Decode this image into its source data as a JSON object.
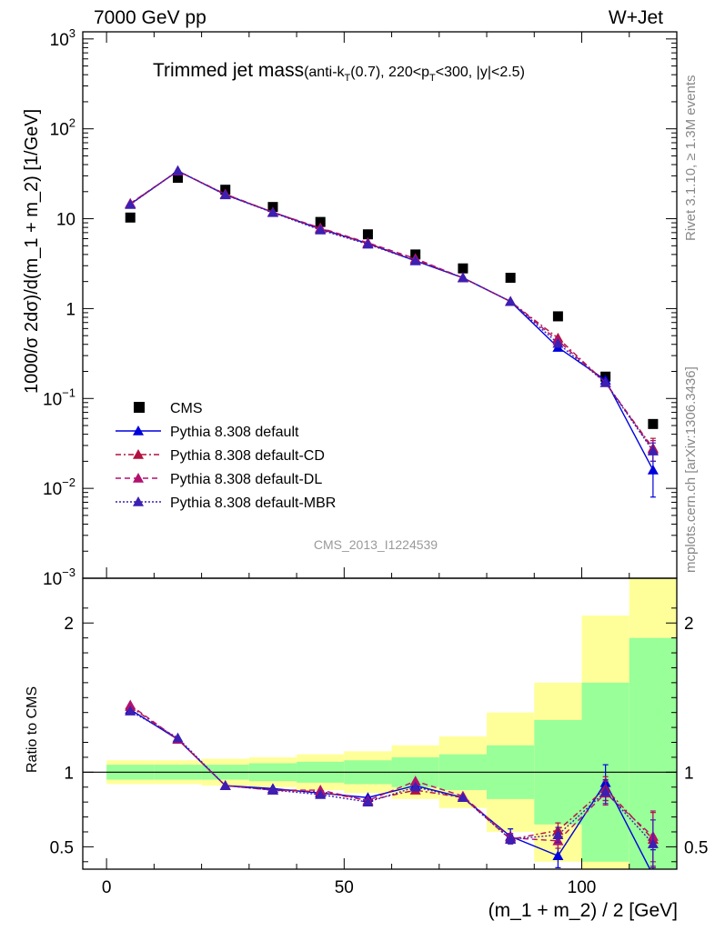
{
  "header": {
    "left": "7000 GeV pp",
    "right": "W+Jet"
  },
  "plot_title": {
    "main": "Trimmed jet mass",
    "sub_prefix": "(anti-k",
    "sub_sub1": "T",
    "sub_mid": "(0.7), 220<p",
    "sub_sub2": "T",
    "sub_suffix": "<300, |y|<2.5)"
  },
  "side_labels": {
    "rivet": "Rivet 3.1.10, ≥ 1.3M events",
    "mcplots": "mcplots.cern.ch [arXiv:1306.3436]"
  },
  "watermark": "CMS_2013_I1224539",
  "colors": {
    "cms": "#000000",
    "default": "#0000dd",
    "cd": "#b2113f",
    "dl": "#b2116e",
    "mbr": "#3c1fb3",
    "band_inner": "#99ff99",
    "band_outer": "#ffff99"
  },
  "chart_data": [
    {
      "type": "scatter",
      "panel": "main",
      "ylabel": "1000/σ 2dσ)/d(m_1 + m_2) [1/GeV]",
      "yscale": "log",
      "ylim": [
        0.001,
        1200
      ],
      "xlim": [
        -5,
        120
      ],
      "yticks": [
        {
          "base": "10",
          "exp": "3"
        },
        {
          "base": "10",
          "exp": "2"
        },
        {
          "base": "10",
          "exp": ""
        },
        {
          "base": "1",
          "exp": ""
        },
        {
          "base": "10",
          "exp": "−1"
        },
        {
          "base": "10",
          "exp": "−2"
        },
        {
          "base": "10",
          "exp": "−3"
        }
      ],
      "x": [
        5,
        15,
        25,
        35,
        45,
        55,
        65,
        75,
        85,
        95,
        105,
        115
      ],
      "legend_position": "bottom-left",
      "series": [
        {
          "name": "CMS",
          "style": "square",
          "values": [
            10.3,
            28.5,
            21.0,
            13.5,
            9.2,
            6.7,
            4.0,
            2.8,
            2.2,
            0.82,
            0.175,
            0.052
          ]
        },
        {
          "name": "Pythia 8.308 default",
          "style": "solid",
          "values": [
            14.5,
            34.0,
            18.5,
            11.8,
            7.7,
            5.3,
            3.4,
            2.2,
            1.2,
            0.37,
            0.16,
            0.016
          ],
          "err_low": [
            0,
            0,
            0,
            0,
            0,
            0,
            0,
            0,
            0,
            0,
            0,
            0.008
          ],
          "err_high": [
            0,
            0,
            0,
            0,
            0,
            0,
            0,
            0,
            0,
            0,
            0,
            0.009
          ]
        },
        {
          "name": "Pythia 8.308 default-CD",
          "style": "dashdot",
          "values": [
            14.7,
            34.0,
            18.8,
            11.8,
            7.8,
            5.3,
            3.5,
            2.2,
            1.2,
            0.47,
            0.15,
            0.028
          ],
          "err_low": [
            0,
            0,
            0,
            0,
            0,
            0,
            0,
            0,
            0,
            0,
            0,
            0.008
          ],
          "err_high": [
            0,
            0,
            0,
            0,
            0,
            0,
            0,
            0,
            0,
            0,
            0,
            0.008
          ]
        },
        {
          "name": "Pythia 8.308 default-DL",
          "style": "dashed",
          "values": [
            14.8,
            33.8,
            18.7,
            11.8,
            7.9,
            5.4,
            3.6,
            2.2,
            1.2,
            0.44,
            0.15,
            0.027
          ],
          "err_low": [
            0,
            0,
            0,
            0,
            0,
            0,
            0,
            0,
            0,
            0,
            0,
            0.007
          ],
          "err_high": [
            0,
            0,
            0,
            0,
            0,
            0,
            0,
            0,
            0,
            0,
            0,
            0.007
          ]
        },
        {
          "name": "Pythia 8.308 default-MBR",
          "style": "dotted",
          "values": [
            14.4,
            34.2,
            18.4,
            11.7,
            7.5,
            5.2,
            3.4,
            2.2,
            1.2,
            0.41,
            0.15,
            0.026
          ],
          "err_low": [
            0,
            0,
            0,
            0,
            0,
            0,
            0,
            0,
            0,
            0,
            0,
            0.006
          ],
          "err_high": [
            0,
            0,
            0,
            0,
            0,
            0,
            0,
            0,
            0,
            0,
            0,
            0.006
          ]
        }
      ]
    },
    {
      "type": "line",
      "panel": "ratio",
      "ylabel": "Ratio to CMS",
      "xlabel": "(m_1 + m_2) / 2 [GeV]",
      "ylim": [
        0.35,
        2.3
      ],
      "xlim": [
        -5,
        120
      ],
      "xticks": [
        "0",
        "50",
        "100"
      ],
      "yticks": [
        "0.5",
        "1",
        "2"
      ],
      "x": [
        5,
        15,
        25,
        35,
        45,
        55,
        65,
        75,
        85,
        95,
        105,
        115
      ],
      "band_x_edges": [
        0,
        10,
        20,
        30,
        40,
        50,
        60,
        70,
        80,
        90,
        100,
        110,
        120
      ],
      "band_inner": {
        "lo": [
          0.95,
          0.95,
          0.95,
          0.94,
          0.93,
          0.92,
          0.9,
          0.88,
          0.82,
          0.65,
          0.4,
          0.0
        ],
        "hi": [
          1.05,
          1.05,
          1.05,
          1.06,
          1.07,
          1.08,
          1.1,
          1.12,
          1.18,
          1.35,
          1.6,
          1.9
        ]
      },
      "band_outer": {
        "lo": [
          0.92,
          0.92,
          0.91,
          0.9,
          0.88,
          0.86,
          0.82,
          0.76,
          0.6,
          0.4,
          0.08,
          0.0
        ],
        "hi": [
          1.08,
          1.08,
          1.09,
          1.1,
          1.12,
          1.14,
          1.18,
          1.24,
          1.4,
          1.6,
          2.05,
          2.4
        ]
      },
      "series": [
        {
          "name": "Pythia 8.308 default",
          "style": "solid",
          "values": [
            1.42,
            1.22,
            0.91,
            0.89,
            0.86,
            0.83,
            0.91,
            0.83,
            0.57,
            0.44,
            0.93,
            0.31
          ],
          "err_low": [
            0,
            0,
            0,
            0,
            0,
            0,
            0,
            0,
            0.05,
            0.08,
            0.12,
            0.15
          ],
          "err_high": [
            0,
            0,
            0,
            0,
            0,
            0,
            0,
            0,
            0.05,
            0.08,
            0.12,
            0.17
          ]
        },
        {
          "name": "Pythia 8.308 default-CD",
          "style": "dashdot",
          "values": [
            1.44,
            1.22,
            0.91,
            0.88,
            0.87,
            0.81,
            0.88,
            0.83,
            0.55,
            0.61,
            0.89,
            0.55
          ],
          "err_low": [
            0,
            0,
            0,
            0,
            0,
            0,
            0,
            0,
            0.03,
            0.05,
            0.08,
            0.18
          ],
          "err_high": [
            0,
            0,
            0,
            0,
            0,
            0,
            0,
            0,
            0.03,
            0.05,
            0.08,
            0.18
          ]
        },
        {
          "name": "Pythia 8.308 default-DL",
          "style": "dashed",
          "values": [
            1.45,
            1.22,
            0.91,
            0.88,
            0.88,
            0.81,
            0.94,
            0.84,
            0.56,
            0.54,
            0.86,
            0.57
          ],
          "err_low": [
            0,
            0,
            0,
            0,
            0,
            0,
            0,
            0,
            0.03,
            0.05,
            0.08,
            0.17
          ],
          "err_high": [
            0,
            0,
            0,
            0,
            0,
            0,
            0,
            0,
            0.03,
            0.05,
            0.08,
            0.17
          ]
        },
        {
          "name": "Pythia 8.308 default-MBR",
          "style": "dotted",
          "values": [
            1.41,
            1.23,
            0.91,
            0.88,
            0.85,
            0.8,
            0.9,
            0.83,
            0.55,
            0.58,
            0.87,
            0.52
          ],
          "err_low": [
            0,
            0,
            0,
            0,
            0,
            0,
            0,
            0,
            0.03,
            0.05,
            0.08,
            0.16
          ],
          "err_high": [
            0,
            0,
            0,
            0,
            0,
            0,
            0,
            0,
            0.03,
            0.05,
            0.08,
            0.16
          ]
        }
      ]
    }
  ]
}
